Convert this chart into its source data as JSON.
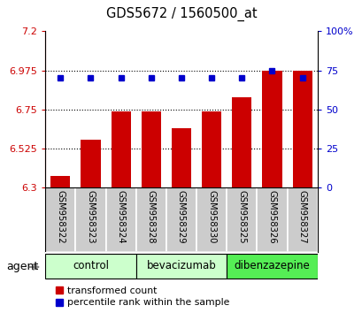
{
  "title": "GDS5672 / 1560500_at",
  "samples": [
    "GSM958322",
    "GSM958323",
    "GSM958324",
    "GSM958328",
    "GSM958329",
    "GSM958330",
    "GSM958325",
    "GSM958326",
    "GSM958327"
  ],
  "bar_values": [
    6.37,
    6.575,
    6.74,
    6.74,
    6.645,
    6.74,
    6.82,
    6.975,
    6.975
  ],
  "percentile_values": [
    70,
    70,
    70,
    70,
    70,
    70,
    70,
    75,
    70
  ],
  "groups": [
    {
      "label": "control",
      "indices": [
        0,
        1,
        2
      ],
      "color": "#ccffcc"
    },
    {
      "label": "bevacizumab",
      "indices": [
        3,
        4,
        5
      ],
      "color": "#ccffcc"
    },
    {
      "label": "dibenzazepine",
      "indices": [
        6,
        7,
        8
      ],
      "color": "#55ee55"
    }
  ],
  "bar_color": "#cc0000",
  "dot_color": "#0000cc",
  "ylim_left": [
    6.3,
    7.2
  ],
  "ylim_right": [
    0,
    100
  ],
  "yticks_left": [
    6.3,
    6.525,
    6.75,
    6.975,
    7.2
  ],
  "yticks_right": [
    0,
    25,
    50,
    75,
    100
  ],
  "ytick_labels_left": [
    "6.3",
    "6.525",
    "6.75",
    "6.975",
    "7.2"
  ],
  "ytick_labels_right": [
    "0",
    "25",
    "50",
    "75",
    "100%"
  ],
  "hlines": [
    6.525,
    6.75,
    6.975
  ],
  "left_label_color": "#cc0000",
  "right_label_color": "#0000cc",
  "legend_bar_label": "transformed count",
  "legend_dot_label": "percentile rank within the sample",
  "agent_label": "agent",
  "bg_color": "#ffffff",
  "sample_area_color": "#d0d0d0",
  "sample_cell_color": "#cccccc"
}
